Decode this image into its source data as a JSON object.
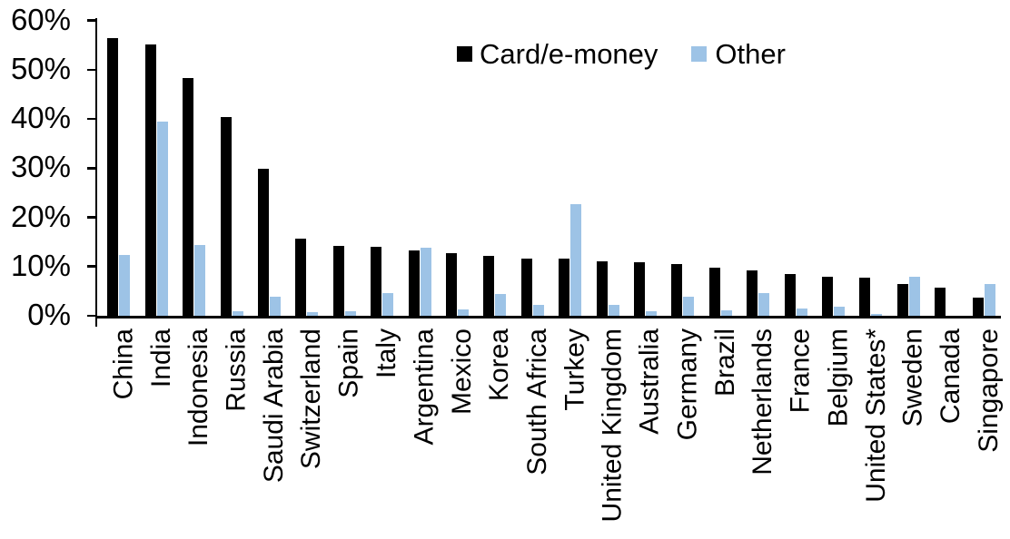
{
  "chart_data": {
    "type": "bar",
    "title": "",
    "xlabel": "",
    "ylabel": "",
    "ylim": [
      0,
      60
    ],
    "y_ticks": [
      "0%",
      "10%",
      "20%",
      "30%",
      "40%",
      "50%",
      "60%"
    ],
    "grid": false,
    "legend_position": "top-center",
    "categories": [
      "China",
      "India",
      "Indonesia",
      "Russia",
      "Saudi Arabia",
      "Switzerland",
      "Spain",
      "Italy",
      "Argentina",
      "Mexico",
      "Korea",
      "South Africa",
      "Turkey",
      "United Kingdom",
      "Australia",
      "Germany",
      "Brazil",
      "Netherlands",
      "France",
      "Belgium",
      "United States*",
      "Sweden",
      "Canada",
      "Singapore"
    ],
    "series": [
      {
        "name": "Card/e-money",
        "color": "#000000",
        "values": [
          56.4,
          55.1,
          48.3,
          40.4,
          29.8,
          15.6,
          14.2,
          14.0,
          13.3,
          12.8,
          12.2,
          11.7,
          11.6,
          11.0,
          10.8,
          10.5,
          9.8,
          9.2,
          8.5,
          8.0,
          7.7,
          6.4,
          5.8,
          3.7
        ]
      },
      {
        "name": "Other",
        "color": "#9DC3E6",
        "values": [
          12.3,
          39.5,
          14.4,
          1.0,
          3.9,
          0.8,
          1.0,
          4.6,
          13.8,
          1.2,
          4.5,
          2.3,
          22.6,
          2.2,
          0.9,
          3.8,
          1.1,
          4.7,
          1.4,
          1.9,
          0.3,
          7.9,
          0.0,
          6.5
        ]
      }
    ]
  }
}
